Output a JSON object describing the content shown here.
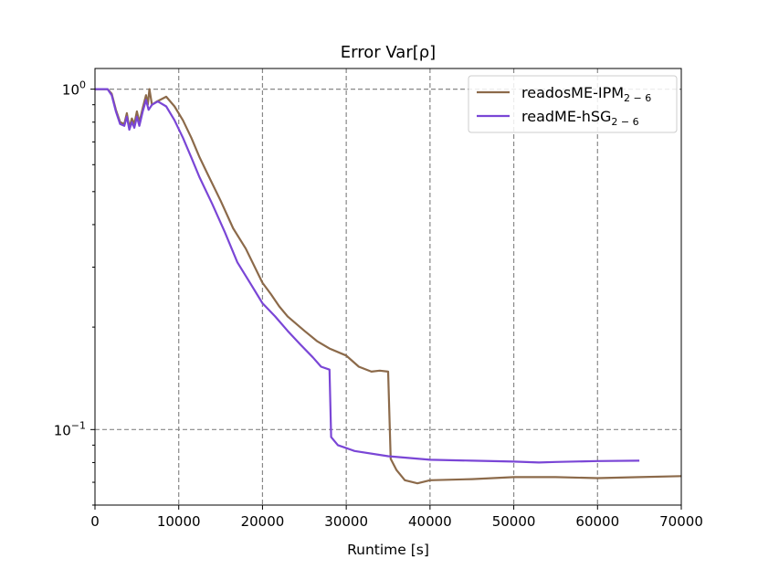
{
  "chart_data": {
    "type": "line",
    "title": "Error Var[ρ]",
    "xlabel": "Runtime [s]",
    "ylabel": "",
    "xlim": [
      0,
      70000
    ],
    "ylim": [
      0.06,
      1.15
    ],
    "yscale": "log",
    "grid": true,
    "grid_style": "dashed",
    "legend_position": "top-right",
    "x_ticks": [
      0,
      10000,
      20000,
      30000,
      40000,
      50000,
      60000,
      70000
    ],
    "x_tick_labels": [
      "0",
      "10000",
      "20000",
      "30000",
      "40000",
      "50000",
      "60000",
      "70000"
    ],
    "y_ticks": [
      {
        "value": 1.0,
        "base": "10",
        "exp": "0"
      },
      {
        "value": 0.1,
        "base": "10",
        "exp": "−1"
      }
    ],
    "series": [
      {
        "name": "readosME-IPM",
        "name_sub": "2 − 6",
        "color": "#8c6a4a",
        "points": [
          [
            0,
            1.0
          ],
          [
            1500,
            1.0
          ],
          [
            2000,
            0.97
          ],
          [
            2500,
            0.87
          ],
          [
            3000,
            0.8
          ],
          [
            3500,
            0.79
          ],
          [
            3800,
            0.85
          ],
          [
            4100,
            0.77
          ],
          [
            4400,
            0.82
          ],
          [
            4700,
            0.79
          ],
          [
            5000,
            0.86
          ],
          [
            5300,
            0.8
          ],
          [
            5700,
            0.88
          ],
          [
            6100,
            0.96
          ],
          [
            6300,
            0.9
          ],
          [
            6500,
            1.0
          ],
          [
            6800,
            0.9
          ],
          [
            7400,
            0.92
          ],
          [
            8500,
            0.95
          ],
          [
            9500,
            0.89
          ],
          [
            10500,
            0.81
          ],
          [
            11500,
            0.72
          ],
          [
            12500,
            0.63
          ],
          [
            13500,
            0.56
          ],
          [
            15000,
            0.47
          ],
          [
            16500,
            0.39
          ],
          [
            18000,
            0.34
          ],
          [
            20000,
            0.27
          ],
          [
            21000,
            0.25
          ],
          [
            22000,
            0.23
          ],
          [
            23000,
            0.215
          ],
          [
            25000,
            0.195
          ],
          [
            26500,
            0.182
          ],
          [
            28000,
            0.173
          ],
          [
            30000,
            0.165
          ],
          [
            31500,
            0.153
          ],
          [
            33000,
            0.148
          ],
          [
            34000,
            0.149
          ],
          [
            35000,
            0.148
          ],
          [
            35300,
            0.082
          ],
          [
            36000,
            0.076
          ],
          [
            37000,
            0.071
          ],
          [
            38500,
            0.0695
          ],
          [
            40000,
            0.071
          ],
          [
            45000,
            0.0715
          ],
          [
            50000,
            0.0725
          ],
          [
            55000,
            0.0725
          ],
          [
            60000,
            0.072
          ],
          [
            65000,
            0.0725
          ],
          [
            70000,
            0.073
          ]
        ]
      },
      {
        "name": "readME-hSG",
        "name_sub": "2 − 6",
        "color": "#7a46d6",
        "points": [
          [
            0,
            1.0
          ],
          [
            1500,
            1.0
          ],
          [
            2000,
            0.96
          ],
          [
            2500,
            0.86
          ],
          [
            3000,
            0.79
          ],
          [
            3500,
            0.78
          ],
          [
            3800,
            0.83
          ],
          [
            4100,
            0.76
          ],
          [
            4400,
            0.8
          ],
          [
            4700,
            0.77
          ],
          [
            5000,
            0.83
          ],
          [
            5300,
            0.78
          ],
          [
            5700,
            0.86
          ],
          [
            6100,
            0.93
          ],
          [
            6400,
            0.87
          ],
          [
            6800,
            0.9
          ],
          [
            7500,
            0.92
          ],
          [
            8500,
            0.89
          ],
          [
            9500,
            0.81
          ],
          [
            10500,
            0.72
          ],
          [
            11500,
            0.63
          ],
          [
            12500,
            0.55
          ],
          [
            14000,
            0.46
          ],
          [
            15500,
            0.38
          ],
          [
            17000,
            0.31
          ],
          [
            18500,
            0.27
          ],
          [
            20000,
            0.235
          ],
          [
            21500,
            0.215
          ],
          [
            23000,
            0.195
          ],
          [
            24500,
            0.178
          ],
          [
            26000,
            0.163
          ],
          [
            27000,
            0.153
          ],
          [
            28000,
            0.15
          ],
          [
            28200,
            0.095
          ],
          [
            29000,
            0.09
          ],
          [
            31000,
            0.0865
          ],
          [
            35000,
            0.0835
          ],
          [
            40000,
            0.0815
          ],
          [
            45000,
            0.081
          ],
          [
            50000,
            0.0805
          ],
          [
            53000,
            0.08
          ],
          [
            55000,
            0.0803
          ],
          [
            60000,
            0.0808
          ],
          [
            65000,
            0.081
          ]
        ]
      }
    ]
  }
}
